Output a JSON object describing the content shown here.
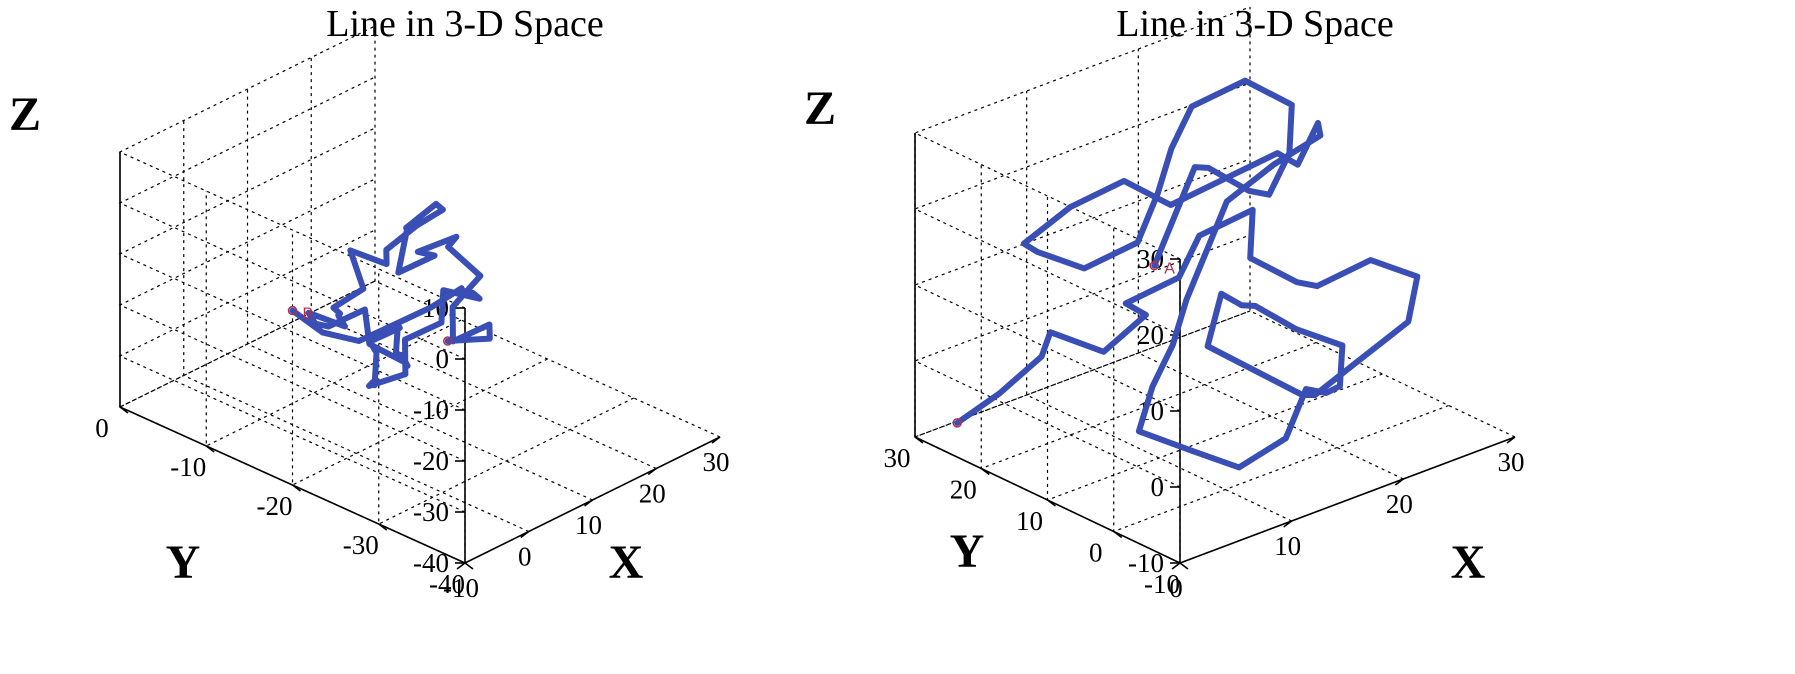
{
  "colors": {
    "line": "#3a4fb5",
    "marker": "#b0304a",
    "grid": "#000000"
  },
  "chart_data": [
    {
      "type": "line3d",
      "title": "Line in 3-D Space",
      "xlabel": "X",
      "ylabel": "Y",
      "zlabel": "Z",
      "xlim": [
        -10,
        30
      ],
      "ylim": [
        -40,
        0
      ],
      "zlim": [
        -40,
        10
      ],
      "xticks": [
        -10,
        0,
        10,
        20,
        30
      ],
      "yticks": [
        0,
        -10,
        -20,
        -30,
        -40
      ],
      "zticks": [
        10,
        0,
        -10,
        -20,
        -30,
        -40
      ],
      "grid": true,
      "end_label": "B",
      "path": [
        [
          -10,
          -38,
          2
        ],
        [
          -4,
          -36,
          -3
        ],
        [
          2,
          -34,
          -8
        ],
        [
          6,
          -31,
          -10
        ],
        [
          3,
          -29,
          -13
        ],
        [
          7,
          -26,
          -11
        ],
        [
          10,
          -27,
          -6
        ],
        [
          9,
          -24,
          -2
        ],
        [
          13,
          -22,
          -4
        ],
        [
          11,
          -19,
          -8
        ],
        [
          15,
          -18,
          -12
        ],
        [
          12,
          -16,
          -15
        ],
        [
          16,
          -14,
          -11
        ],
        [
          19,
          -16,
          -7
        ],
        [
          22,
          -13,
          -10
        ],
        [
          20,
          -11,
          -15
        ],
        [
          24,
          -9,
          -18
        ],
        [
          27,
          -7,
          -22
        ],
        [
          25,
          -5,
          -27
        ],
        [
          21,
          -8,
          -25
        ],
        [
          18,
          -6,
          -22
        ],
        [
          16,
          -9,
          -26
        ],
        [
          14,
          -7,
          -30
        ],
        [
          11,
          -10,
          -27
        ],
        [
          8,
          -12,
          -24
        ],
        [
          5,
          -15,
          -22
        ],
        [
          2,
          -13,
          -19
        ],
        [
          -1,
          -16,
          -17
        ],
        [
          -3,
          -19,
          -14
        ],
        [
          0,
          -21,
          -11
        ],
        [
          -2,
          -23,
          -15
        ],
        [
          1,
          -25,
          -19
        ],
        [
          4,
          -23,
          -23
        ],
        [
          7,
          -20,
          -25
        ],
        [
          10,
          -18,
          -29
        ],
        [
          13,
          -15,
          -32
        ],
        [
          16,
          -13,
          -30
        ],
        [
          19,
          -11,
          -34
        ],
        [
          17,
          -9,
          -37
        ],
        [
          14,
          -12,
          -35
        ],
        [
          11,
          -14,
          -38
        ],
        [
          8,
          -16,
          -34
        ],
        [
          5,
          -18,
          -31
        ],
        [
          2,
          -20,
          -28
        ],
        [
          5,
          -22,
          -26
        ],
        [
          9,
          -19,
          -24
        ],
        [
          12,
          -21,
          -21
        ],
        [
          15,
          -19,
          -18
        ],
        [
          18,
          -21,
          -20
        ],
        [
          21,
          -18,
          -23
        ],
        [
          23,
          -15,
          -26
        ],
        [
          26,
          -13,
          -29
        ],
        [
          24,
          -11,
          -33
        ],
        [
          21,
          -9,
          -36
        ],
        [
          18,
          -7,
          -39
        ],
        [
          15,
          -5,
          -37
        ],
        [
          13,
          -3,
          -33
        ]
      ]
    },
    {
      "type": "line3d",
      "title": "Line in 3-D Space",
      "xlabel": "X",
      "ylabel": "Y",
      "zlabel": "Z",
      "xlim": [
        0,
        30
      ],
      "ylim": [
        -10,
        30
      ],
      "zlim": [
        -10,
        30
      ],
      "xticks": [
        0,
        10,
        20,
        30
      ],
      "yticks": [
        30,
        20,
        10,
        0,
        -10
      ],
      "zticks": [
        30,
        20,
        10,
        0,
        -10
      ],
      "grid": true,
      "end_label": "A",
      "path": [
        [
          2,
          27,
          -8
        ],
        [
          4,
          24,
          -4
        ],
        [
          6,
          21,
          1
        ],
        [
          5,
          18,
          6
        ],
        [
          8,
          15,
          3
        ],
        [
          10,
          12,
          8
        ],
        [
          7,
          10,
          12
        ],
        [
          10,
          7,
          15
        ],
        [
          13,
          9,
          18
        ],
        [
          16,
          6,
          21
        ],
        [
          14,
          3,
          17
        ],
        [
          17,
          1,
          13
        ],
        [
          20,
          3,
          10
        ],
        [
          23,
          0,
          13
        ],
        [
          26,
          -2,
          10
        ],
        [
          24,
          -4,
          6
        ],
        [
          21,
          -2,
          2
        ],
        [
          18,
          0,
          -2
        ],
        [
          15,
          -3,
          1
        ],
        [
          12,
          -1,
          5
        ],
        [
          9,
          1,
          9
        ],
        [
          12,
          4,
          13
        ],
        [
          15,
          6,
          9
        ],
        [
          18,
          9,
          6
        ],
        [
          21,
          11,
          2
        ],
        [
          24,
          13,
          -2
        ],
        [
          27,
          11,
          -5
        ],
        [
          25,
          8,
          -8
        ],
        [
          22,
          5,
          -6
        ],
        [
          19,
          3,
          -3
        ],
        [
          16,
          1,
          -7
        ],
        [
          13,
          3,
          -10
        ],
        [
          10,
          5,
          -7
        ],
        [
          7,
          8,
          -4
        ],
        [
          10,
          11,
          -1
        ],
        [
          13,
          13,
          2
        ],
        [
          16,
          16,
          5
        ],
        [
          19,
          18,
          9
        ],
        [
          22,
          20,
          13
        ],
        [
          25,
          18,
          17
        ],
        [
          28,
          16,
          20
        ],
        [
          26,
          13,
          24
        ],
        [
          23,
          11,
          21
        ],
        [
          20,
          9,
          25
        ],
        [
          17,
          12,
          22
        ],
        [
          14,
          15,
          19
        ],
        [
          11,
          17,
          23
        ],
        [
          8,
          20,
          20
        ],
        [
          5,
          22,
          16
        ],
        [
          8,
          25,
          12
        ],
        [
          11,
          23,
          9
        ],
        [
          14,
          20,
          12
        ],
        [
          17,
          22,
          16
        ],
        [
          20,
          25,
          19
        ],
        [
          23,
          27,
          22
        ],
        [
          26,
          24,
          25
        ],
        [
          29,
          22,
          21
        ],
        [
          27,
          19,
          17
        ],
        [
          24,
          17,
          14
        ],
        [
          21,
          15,
          17
        ],
        [
          18,
          13,
          21
        ],
        [
          15,
          11,
          25
        ],
        [
          12,
          8,
          28
        ],
        [
          9,
          6,
          24
        ],
        [
          6,
          4,
          20
        ]
      ]
    }
  ]
}
